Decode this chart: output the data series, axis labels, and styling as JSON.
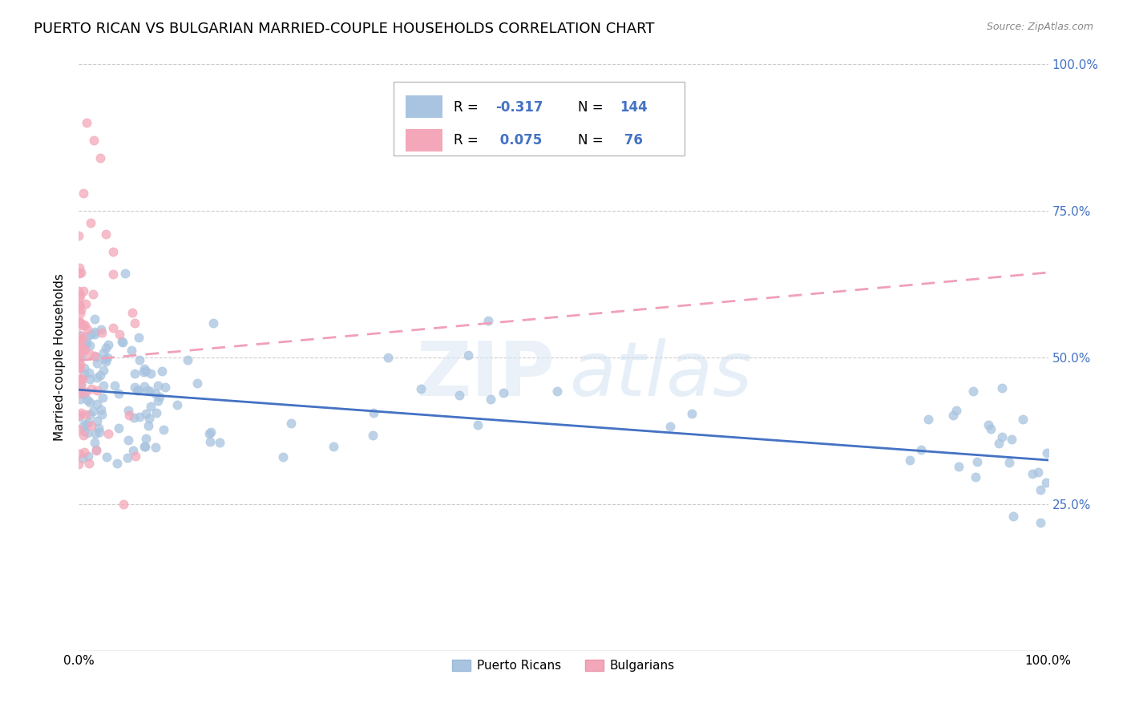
{
  "title": "PUERTO RICAN VS BULGARIAN MARRIED-COUPLE HOUSEHOLDS CORRELATION CHART",
  "source": "Source: ZipAtlas.com",
  "ylabel": "Married-couple Households",
  "xlim": [
    0,
    1.0
  ],
  "ylim": [
    0,
    1.0
  ],
  "ytick_positions": [
    0.25,
    0.5,
    0.75,
    1.0
  ],
  "ytick_labels_right": [
    "25.0%",
    "50.0%",
    "75.0%",
    "100.0%"
  ],
  "xtick_positions": [
    0.0,
    1.0
  ],
  "xtick_labels": [
    "0.0%",
    "100.0%"
  ],
  "color_blue": "#a8c4e0",
  "color_pink": "#f4a7b9",
  "line_blue": "#4472c4",
  "line_pink": "#e87a9a",
  "line_pink_dashed": "#f0a0b8",
  "background": "#ffffff",
  "grid_color": "#cccccc",
  "right_axis_color": "#4472c4",
  "watermark_zip_color": "#dce8f4",
  "watermark_atlas_color": "#c8ddf0",
  "pr_trend": [
    0.0,
    1.0,
    0.445,
    0.325
  ],
  "bg_trend": [
    0.0,
    1.0,
    0.495,
    0.645
  ],
  "n_pr": 144,
  "n_bg": 76
}
